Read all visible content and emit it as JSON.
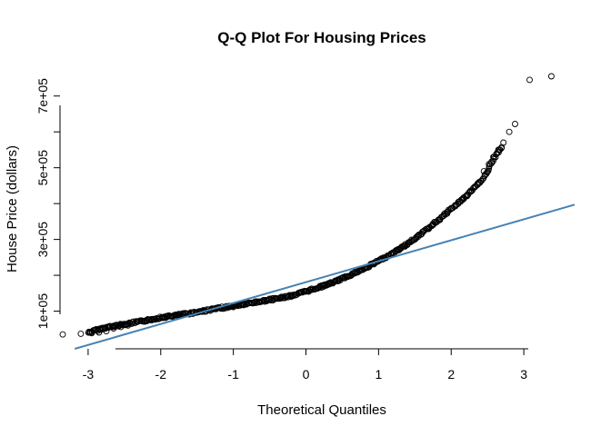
{
  "chart_data": {
    "type": "scatter",
    "title": "Q-Q Plot For Housing Prices",
    "xlabel": "Theoretical Quantiles",
    "ylabel": "House Price (dollars)",
    "xlim": [
      -3.6,
      3.7
    ],
    "ylim": [
      -5000,
      755000
    ],
    "x_ticks": [
      -3,
      -2,
      -1,
      0,
      1,
      2,
      3
    ],
    "x_tick_labels": [
      "-3",
      "-2",
      "-1",
      "0",
      "1",
      "2",
      "3"
    ],
    "y_ticks": [
      100000,
      200000,
      300000,
      400000,
      500000,
      600000,
      700000
    ],
    "y_tick_labels": [
      "1e+05",
      "",
      "3e+05",
      "",
      "5e+05",
      "",
      "7e+05"
    ],
    "grid": false,
    "marker": "open-circle",
    "reference_line": {
      "intercept": 180921,
      "slope": 58400,
      "color": "#4682b4"
    },
    "quantile_curve": [
      [
        -3.0,
        40000
      ],
      [
        -2.8,
        52000
      ],
      [
        -2.6,
        60000
      ],
      [
        -2.4,
        67000
      ],
      [
        -2.2,
        74000
      ],
      [
        -2.0,
        82000
      ],
      [
        -1.8,
        88000
      ],
      [
        -1.6,
        94000
      ],
      [
        -1.4,
        101000
      ],
      [
        -1.2,
        108000
      ],
      [
        -1.0,
        114000
      ],
      [
        -0.8,
        121000
      ],
      [
        -0.6,
        128000
      ],
      [
        -0.4,
        135000
      ],
      [
        -0.2,
        143000
      ],
      [
        0.0,
        155000
      ],
      [
        0.2,
        168000
      ],
      [
        0.4,
        182000
      ],
      [
        0.6,
        200000
      ],
      [
        0.8,
        218000
      ],
      [
        1.0,
        240000
      ],
      [
        1.2,
        262000
      ],
      [
        1.4,
        288000
      ],
      [
        1.6,
        318000
      ],
      [
        1.8,
        350000
      ],
      [
        2.0,
        385000
      ],
      [
        2.2,
        420000
      ],
      [
        2.4,
        460000
      ],
      [
        2.5,
        490000
      ],
      [
        2.6,
        530000
      ],
      [
        2.7,
        560000
      ]
    ],
    "tail_points": [
      [
        -3.35,
        35000
      ],
      [
        -3.1,
        37000
      ],
      [
        -2.95,
        38500
      ],
      [
        -2.85,
        40500
      ],
      [
        -2.75,
        44000
      ],
      [
        -2.65,
        52000
      ],
      [
        -2.55,
        56000
      ],
      [
        -2.45,
        60000
      ],
      [
        2.45,
        490000
      ],
      [
        2.52,
        510000
      ],
      [
        2.58,
        530000
      ],
      [
        2.65,
        550000
      ],
      [
        2.72,
        570000
      ],
      [
        2.8,
        600000
      ],
      [
        2.88,
        622000
      ],
      [
        3.08,
        745000
      ],
      [
        3.38,
        755000
      ]
    ]
  }
}
